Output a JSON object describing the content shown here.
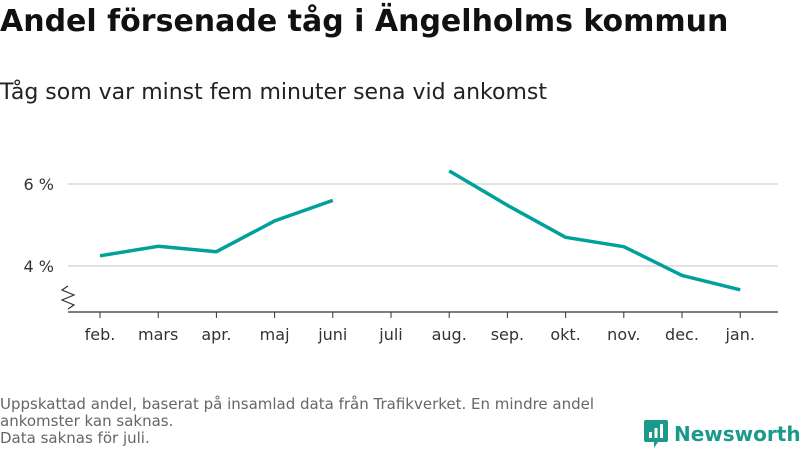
{
  "title": "Andel försenade tåg i Ängelholms kommun",
  "subtitle": "Tåg som var minst fem minuter sena vid ankomst",
  "footnote": {
    "line1": "Uppskattad andel, baserat på insamlad data från Trafikverket. En mindre andel ankomster kan saknas.",
    "line2": "Data saknas för juli."
  },
  "logo": {
    "text": "Newsworthy",
    "icon": "newsworthy-logo-icon"
  },
  "colors": {
    "line": "#00a19a",
    "grid": "#d9d9d9",
    "axis": "#333333",
    "logo": "#1a9a8a"
  },
  "chart_data": {
    "type": "line",
    "categories": [
      "feb.",
      "mars",
      "apr.",
      "maj",
      "juni",
      "juli",
      "aug.",
      "sep.",
      "okt.",
      "nov.",
      "dec.",
      "jan."
    ],
    "series": [
      {
        "values": [
          4.25,
          4.48,
          4.35,
          5.1,
          5.6,
          null,
          6.32,
          5.48,
          4.7,
          4.47,
          3.77,
          3.42
        ]
      }
    ],
    "y_ticks": [
      4,
      6
    ],
    "y_tick_labels": [
      "4 %",
      "6 %"
    ],
    "ylim": [
      3,
      6.6
    ],
    "axis_break": true,
    "grid": true
  }
}
